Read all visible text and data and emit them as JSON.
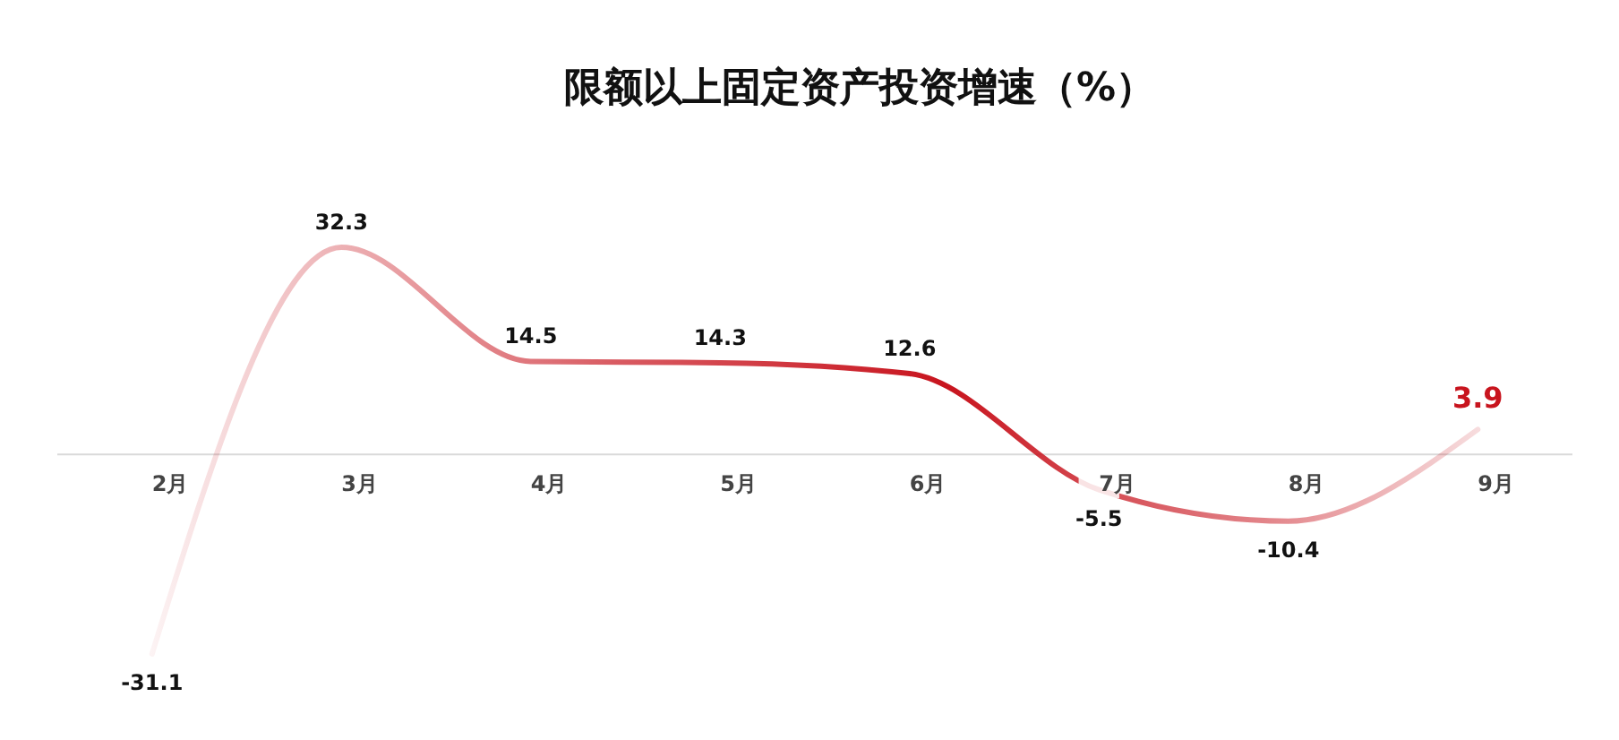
{
  "chart_data": {
    "type": "line",
    "title": "限额以上固定资产投资增速（%）",
    "categories": [
      "2月",
      "3月",
      "4月",
      "5月",
      "6月",
      "7月",
      "8月",
      "9月"
    ],
    "series": [
      {
        "color": "#c8141e",
        "values": [
          -31.1,
          32.3,
          14.5,
          14.3,
          12.6,
          -5.5,
          -10.4,
          3.9
        ]
      }
    ],
    "data_labels": true,
    "marker": "none",
    "line_style": "solid"
  }
}
